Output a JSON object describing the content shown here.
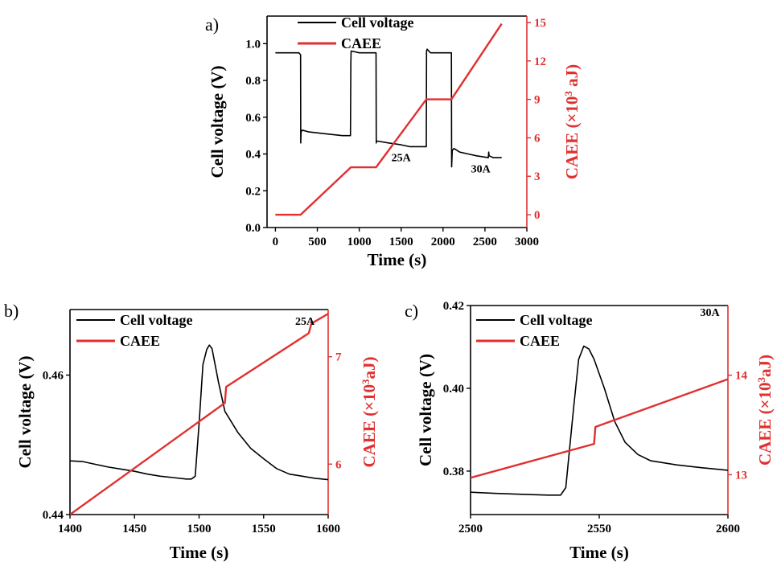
{
  "colors": {
    "voltage": "#000000",
    "caee": "#e03030"
  },
  "charts": [
    {
      "id": "a",
      "panel_label": "a)",
      "type": "line",
      "xlabel": "Time (s)",
      "ylabel_left": "Cell voltage (V)",
      "ylabel_right_main": "CAEE (×10",
      "ylabel_right_sup": "3",
      "ylabel_right_end": " aJ)",
      "legend": [
        "Cell voltage",
        "CAEE"
      ],
      "xlim": [
        -100,
        3000
      ],
      "ylim_left": [
        0,
        1.15
      ],
      "ylim_right": [
        -1,
        15.5
      ],
      "xticks": [
        0,
        500,
        1000,
        1500,
        2000,
        2500,
        3000
      ],
      "xtick_labels": [
        "0",
        "500",
        "1000",
        "1500",
        "2000",
        "2500",
        "3000"
      ],
      "yticks_left": [
        0.0,
        0.2,
        0.4,
        0.6,
        0.8,
        1.0
      ],
      "ytick_labels_left": [
        "0.0",
        "0.2",
        "0.4",
        "0.6",
        "0.8",
        "1.0"
      ],
      "yticks_right": [
        0,
        3,
        6,
        9,
        12,
        15
      ],
      "ytick_labels_right": [
        "0",
        "3",
        "6",
        "9",
        "12",
        "15"
      ],
      "annotations": [
        {
          "text": "25A",
          "x": 1500,
          "y": 0.36
        },
        {
          "text": "30A",
          "x": 2450,
          "y": 0.3
        }
      ],
      "series": [
        {
          "name": "Cell voltage",
          "axis": "left",
          "x": [
            0,
            280,
            300,
            302,
            306,
            320,
            400,
            600,
            800,
            895,
            900,
            903,
            910,
            1000,
            1150,
            1200,
            1203,
            1206,
            1220,
            1350,
            1500,
            1600,
            1790,
            1800,
            1803,
            1810,
            1850,
            2000,
            2095,
            2100,
            2103,
            2110,
            2130,
            2200,
            2300,
            2400,
            2540,
            2545,
            2550,
            2600,
            2700
          ],
          "y": [
            0.95,
            0.95,
            0.94,
            0.46,
            0.52,
            0.53,
            0.52,
            0.51,
            0.5,
            0.5,
            0.9,
            0.96,
            0.96,
            0.95,
            0.95,
            0.95,
            0.46,
            0.47,
            0.47,
            0.46,
            0.45,
            0.44,
            0.44,
            0.44,
            0.96,
            0.97,
            0.95,
            0.95,
            0.95,
            0.95,
            0.33,
            0.42,
            0.43,
            0.41,
            0.4,
            0.39,
            0.38,
            0.41,
            0.39,
            0.38,
            0.38
          ]
        },
        {
          "name": "CAEE",
          "axis": "right",
          "x": [
            0,
            300,
            900,
            1200,
            1800,
            2100,
            2700
          ],
          "y": [
            0,
            0,
            3.7,
            3.7,
            9.0,
            9.0,
            14.9
          ]
        }
      ]
    },
    {
      "id": "b",
      "panel_label": "b)",
      "type": "line",
      "xlabel": "Time (s)",
      "ylabel_left": "Cell voltage (V)",
      "ylabel_right_main": "CAEE (×10",
      "ylabel_right_sup": "3",
      "ylabel_right_end": "aJ)",
      "legend": [
        "Cell voltage",
        "CAEE"
      ],
      "xlim": [
        1400,
        1600
      ],
      "ylim_left": [
        0.44,
        0.4694
      ],
      "ylim_right": [
        5.53,
        7.44
      ],
      "xticks": [
        1400,
        1450,
        1500,
        1550,
        1600
      ],
      "xtick_labels": [
        "1400",
        "1450",
        "1500",
        "1550",
        "1600"
      ],
      "yticks_left": [
        0.44,
        0.46
      ],
      "ytick_labels_left": [
        "0.44",
        "0.46"
      ],
      "yticks_right": [
        6,
        7
      ],
      "ytick_labels_right": [
        "6",
        "7"
      ],
      "annotations": [
        {
          "text": "25A",
          "x": 1582,
          "y": 0.4672
        }
      ],
      "series": [
        {
          "name": "Cell voltage",
          "axis": "left",
          "x": [
            1400,
            1410,
            1420,
            1430,
            1440,
            1450,
            1460,
            1470,
            1480,
            1490,
            1494,
            1497,
            1500,
            1503,
            1506,
            1508,
            1510,
            1515,
            1520,
            1530,
            1540,
            1550,
            1560,
            1570,
            1580,
            1590,
            1600
          ],
          "y": [
            0.4477,
            0.4476,
            0.4472,
            0.4468,
            0.4465,
            0.4462,
            0.4458,
            0.4455,
            0.4453,
            0.4451,
            0.4451,
            0.4455,
            0.453,
            0.4615,
            0.4637,
            0.4643,
            0.4638,
            0.459,
            0.4548,
            0.4518,
            0.4495,
            0.448,
            0.4466,
            0.4458,
            0.4455,
            0.4452,
            0.445
          ]
        },
        {
          "name": "CAEE",
          "axis": "right",
          "x": [
            1400,
            1520,
            1521,
            1585,
            1587,
            1600
          ],
          "y": [
            5.53,
            6.57,
            6.72,
            7.22,
            7.31,
            7.4
          ]
        }
      ]
    },
    {
      "id": "c",
      "panel_label": "c)",
      "type": "line",
      "xlabel": "Time (s)",
      "ylabel_left": "Cell voltage (V)",
      "ylabel_right_main": "CAEE (×10",
      "ylabel_right_sup": "3",
      "ylabel_right_end": "aJ)",
      "legend": [
        "Cell voltage",
        "CAEE"
      ],
      "xlim": [
        2500,
        2600
      ],
      "ylim_left": [
        0.3695,
        0.42
      ],
      "ylim_right": [
        12.6,
        14.7
      ],
      "xticks": [
        2500,
        2550,
        2600
      ],
      "xtick_labels": [
        "2500",
        "2550",
        "2600"
      ],
      "yticks_left": [
        0.38,
        0.4,
        0.42
      ],
      "ytick_labels_left": [
        "0.38",
        "0.40",
        "0.42"
      ],
      "yticks_right": [
        13,
        14
      ],
      "ytick_labels_right": [
        "13",
        "14"
      ],
      "annotations": [
        {
          "text": "30A",
          "x": 2593,
          "y": 0.4175
        }
      ],
      "series": [
        {
          "name": "Cell voltage",
          "axis": "left",
          "x": [
            2500,
            2510,
            2520,
            2530,
            2535,
            2537,
            2540,
            2542,
            2544,
            2546,
            2548,
            2552,
            2556,
            2560,
            2565,
            2570,
            2580,
            2590,
            2600
          ],
          "y": [
            0.3749,
            0.3746,
            0.3744,
            0.3742,
            0.3742,
            0.376,
            0.395,
            0.407,
            0.4102,
            0.4095,
            0.407,
            0.4,
            0.392,
            0.387,
            0.384,
            0.3825,
            0.3815,
            0.3808,
            0.3802
          ]
        },
        {
          "name": "CAEE",
          "axis": "right",
          "x": [
            2500,
            2548,
            2548.5,
            2600
          ],
          "y": [
            12.97,
            13.31,
            13.48,
            13.96
          ]
        }
      ]
    }
  ]
}
